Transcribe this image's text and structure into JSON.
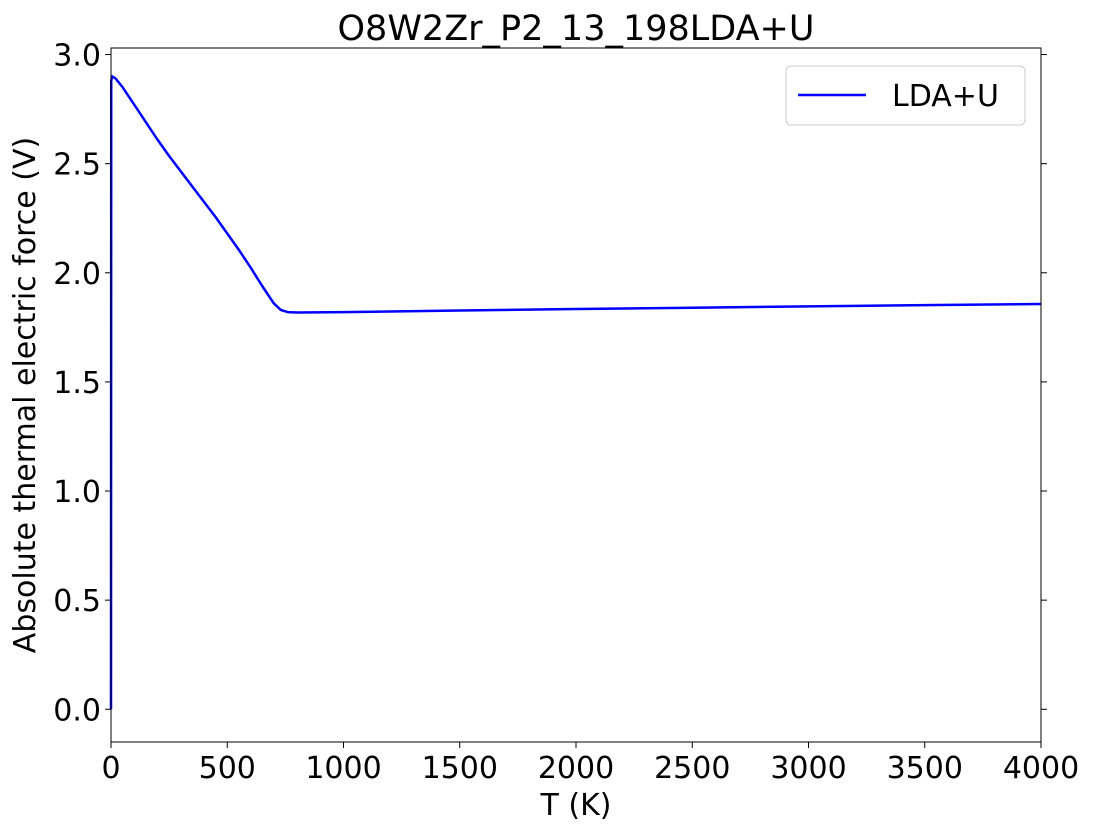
{
  "chart_data": {
    "type": "line",
    "title": "O8W2Zr_P2_13_198LDA+U",
    "xlabel": "T (K)",
    "ylabel": "Absolute thermal electric force (V)",
    "xlim": [
      0,
      4000
    ],
    "ylim": [
      -0.15,
      3.03
    ],
    "xticks": [
      0,
      500,
      1000,
      1500,
      2000,
      2500,
      3000,
      3500,
      4000
    ],
    "xtick_labels": [
      "0",
      "500",
      "1000",
      "1500",
      "2000",
      "2500",
      "3000",
      "3500",
      "4000"
    ],
    "yticks": [
      0.0,
      0.5,
      1.0,
      1.5,
      2.0,
      2.5,
      3.0
    ],
    "ytick_labels": [
      "0.0",
      "0.5",
      "1.0",
      "1.5",
      "2.0",
      "2.5",
      "3.0"
    ],
    "grid": false,
    "legend_position": "top-right",
    "series": [
      {
        "name": "LDA+U",
        "color": "#0000ff",
        "x": [
          0,
          1,
          5,
          20,
          50,
          100,
          150,
          200,
          250,
          300,
          350,
          400,
          450,
          500,
          550,
          600,
          650,
          700,
          730,
          760,
          800,
          1000,
          1500,
          2000,
          2500,
          3000,
          3500,
          4000
        ],
        "y": [
          0.0,
          2.88,
          2.9,
          2.89,
          2.85,
          2.77,
          2.69,
          2.61,
          2.535,
          2.465,
          2.395,
          2.325,
          2.255,
          2.18,
          2.105,
          2.025,
          1.94,
          1.86,
          1.83,
          1.82,
          1.818,
          1.82,
          1.827,
          1.834,
          1.84,
          1.846,
          1.852,
          1.857
        ]
      }
    ]
  }
}
